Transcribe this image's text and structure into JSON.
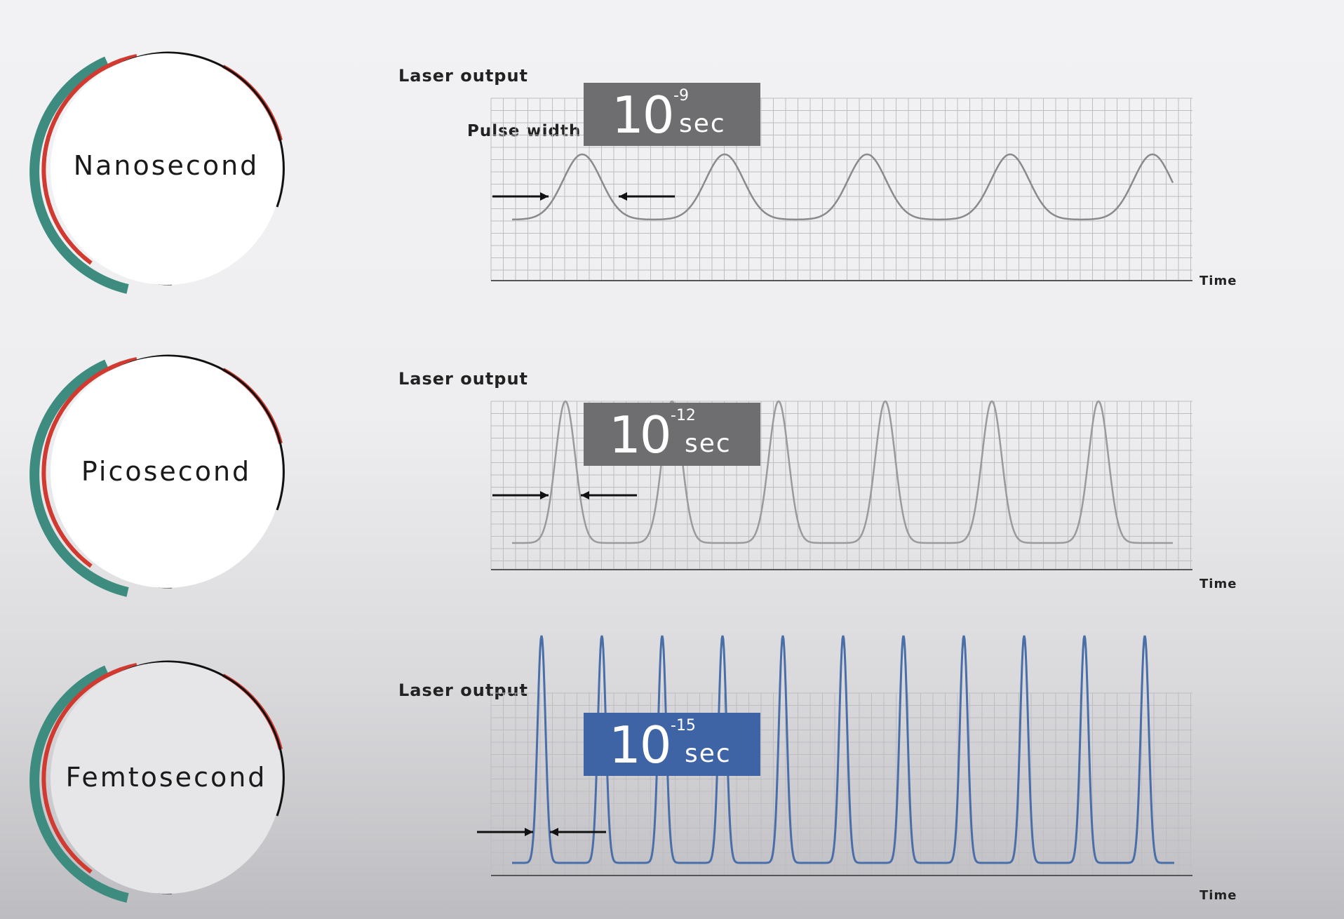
{
  "rows": [
    {
      "circle_label": "Nanosecond",
      "laser_output_label": "Laser output",
      "pulse_width_label": "Pulse width",
      "time_label": "Time",
      "badge": {
        "base": "10",
        "exponent": "-9",
        "unit": "sec",
        "color": "#6e6e70"
      },
      "waveform_color": "#8a8a8a",
      "pulse_count": 5
    },
    {
      "circle_label": "Picosecond",
      "laser_output_label": "Laser output",
      "pulse_width_label": "",
      "time_label": "Time",
      "badge": {
        "base": "10",
        "exponent": "-12",
        "unit": "sec",
        "color": "#6e6e70"
      },
      "waveform_color": "#9a9a9a",
      "pulse_count": 6
    },
    {
      "circle_label": "Femtosecond",
      "laser_output_label": "Laser output",
      "pulse_width_label": "",
      "time_label": "Time",
      "badge": {
        "base": "10",
        "exponent": "-15",
        "unit": "sec",
        "color": "#3f64a6"
      },
      "waveform_color": "#4a6ea8",
      "pulse_count": 11
    }
  ],
  "colors": {
    "teal_arc": "#3e8c80",
    "red_arc": "#d03a30",
    "black_arc": "#111111",
    "grid": "#bdbdc2"
  }
}
